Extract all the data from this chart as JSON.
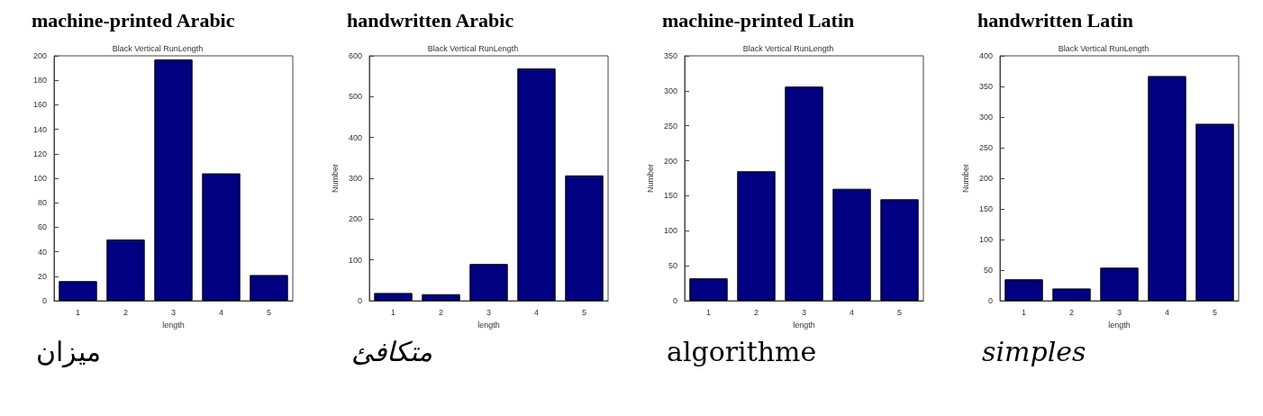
{
  "chart_data": [
    {
      "type": "bar",
      "title": "machine-printed Arabic",
      "subtitle": "Black Vertical RunLength",
      "xlabel": "length",
      "categories": [
        "1",
        "2",
        "3",
        "4",
        "5"
      ],
      "values": [
        16,
        50,
        197,
        104,
        21
      ],
      "color": "#000080",
      "ylim": [
        0,
        200
      ],
      "yticks": [
        0,
        20,
        40,
        60,
        80,
        100,
        120,
        140,
        160,
        180,
        200
      ],
      "annotations": [
        "ميزان"
      ]
    },
    {
      "type": "bar",
      "title": "handwritten Arabic",
      "subtitle": "Black Vertical RunLength",
      "xlabel": "length",
      "ylabel": "Number",
      "categories": [
        "1",
        "2",
        "3",
        "4",
        "5"
      ],
      "values": [
        19,
        16,
        90,
        569,
        307
      ],
      "color": "#000080",
      "ylim": [
        0,
        600
      ],
      "yticks": [
        0,
        100,
        200,
        300,
        400,
        500,
        600
      ],
      "annotations": [
        "متكافئ"
      ]
    },
    {
      "type": "bar",
      "title": "machine-printed Latin",
      "subtitle": "Black Vertical RunLength",
      "xlabel": "length",
      "ylabel": "Number",
      "categories": [
        "1",
        "2",
        "3",
        "4",
        "5"
      ],
      "values": [
        32,
        185,
        306,
        160,
        145
      ],
      "color": "#000080",
      "ylim": [
        0,
        350
      ],
      "yticks": [
        0,
        50,
        100,
        150,
        200,
        250,
        300,
        350
      ],
      "annotations": [
        "algorithme"
      ]
    },
    {
      "type": "bar",
      "title": "handwritten Latin",
      "subtitle": "Black Vertical RunLength",
      "xlabel": "length",
      "ylabel": "Number",
      "categories": [
        "1",
        "2",
        "3",
        "4",
        "5"
      ],
      "values": [
        35,
        20,
        54,
        367,
        289
      ],
      "color": "#000080",
      "ylim": [
        0,
        400
      ],
      "yticks": [
        0,
        50,
        100,
        150,
        200,
        250,
        300,
        350,
        400
      ],
      "annotations": [
        "simples"
      ]
    }
  ]
}
